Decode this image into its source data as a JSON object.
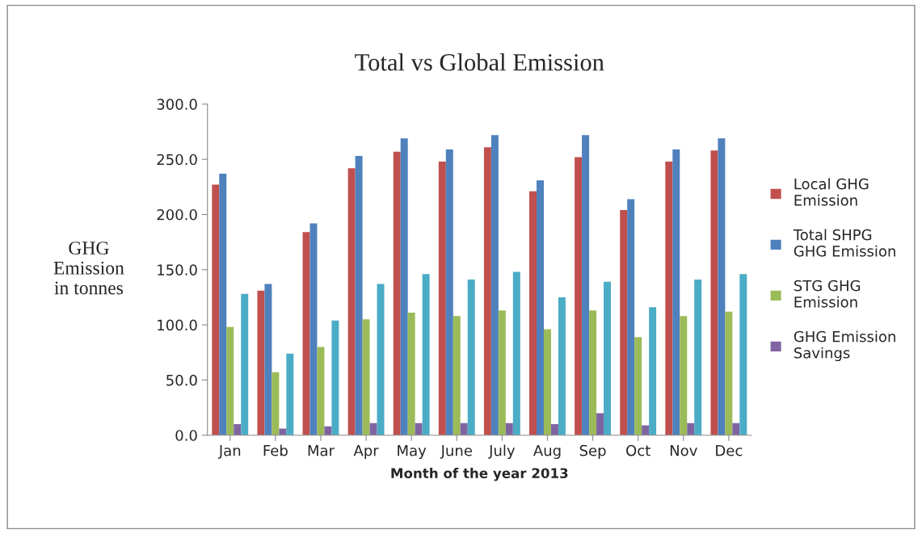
{
  "chart_data": {
    "type": "bar",
    "title": "Total vs Global Emission",
    "xlabel": "Month of the year 2013",
    "ylabel": "GHG\nEmission\nin tonnes",
    "categories": [
      "Jan",
      "Feb",
      "Mar",
      "Apr",
      "May",
      "June",
      "July",
      "Aug",
      "Sep",
      "Oct",
      "Nov",
      "Dec"
    ],
    "series": [
      {
        "name": "Local GHG Emission",
        "color": "#c0504d",
        "values": [
          227,
          131,
          184,
          242,
          257,
          248,
          261,
          221,
          252,
          204,
          248,
          258
        ]
      },
      {
        "name": "Total SHPG GHG Emission",
        "color": "#4f81bd",
        "values": [
          237,
          137,
          192,
          253,
          269,
          259,
          272,
          231,
          272,
          214,
          259,
          269
        ]
      },
      {
        "name": "STG GHG Emission",
        "color": "#9bbb59",
        "values": [
          98,
          57,
          80,
          105,
          111,
          108,
          113,
          96,
          113,
          89,
          108,
          112
        ]
      },
      {
        "name": "GHG Emission Savings",
        "color": "#8064a2",
        "values": [
          10,
          6,
          8,
          11,
          11,
          11,
          11,
          10,
          20,
          9,
          11,
          11
        ]
      },
      {
        "color": "#4bacc6",
        "values": [
          128,
          74,
          104,
          137,
          146,
          141,
          148,
          125,
          139,
          116,
          141,
          146
        ]
      }
    ],
    "ylim": [
      0,
      300
    ],
    "yticks": [
      {
        "value": 0,
        "label": "0.0"
      },
      {
        "value": 50,
        "label": "50.0"
      },
      {
        "value": 100,
        "label": "100.0"
      },
      {
        "value": 150,
        "label": "150.0"
      },
      {
        "value": 200,
        "label": "200.0"
      },
      {
        "value": 250,
        "label": "250.0"
      },
      {
        "value": 300,
        "label": "300.0"
      }
    ],
    "grid": false,
    "legend": "right"
  }
}
